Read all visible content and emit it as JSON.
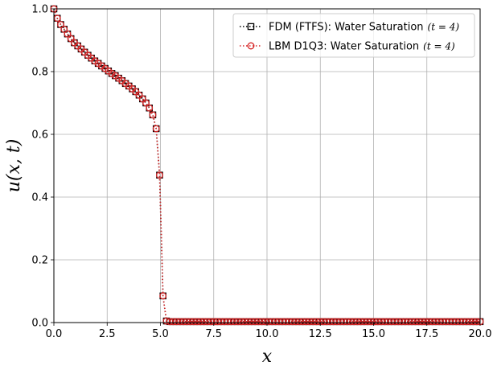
{
  "chart_data": {
    "type": "line",
    "title": "",
    "xlabel": "x",
    "ylabel": "u(x, t)",
    "xlim": [
      0,
      20
    ],
    "ylim": [
      0,
      1
    ],
    "xticks": [
      "0.0",
      "2.5",
      "5.0",
      "7.5",
      "10.0",
      "12.5",
      "15.0",
      "17.5",
      "20.0"
    ],
    "yticks": [
      "0.0",
      "0.2",
      "0.4",
      "0.6",
      "0.8",
      "1.0"
    ],
    "grid": true,
    "legend_position": "top-right",
    "series": [
      {
        "name": "FDM (FTFS): Water Saturation",
        "name_math": "(t = 4)",
        "color": "#000000",
        "linestyle": "dotted",
        "marker": "square"
      },
      {
        "name": "LBM D1Q3: Water Saturation",
        "name_math": "(t = 4)",
        "color": "#d62728",
        "linestyle": "dotted",
        "marker": "circle"
      }
    ],
    "x": [
      0.0,
      0.16,
      0.32,
      0.48,
      0.64,
      0.8,
      0.96,
      1.12,
      1.28,
      1.44,
      1.6,
      1.76,
      1.92,
      2.08,
      2.24,
      2.4,
      2.56,
      2.72,
      2.88,
      3.04,
      3.2,
      3.36,
      3.52,
      3.68,
      3.84,
      4.0,
      4.16,
      4.32,
      4.48,
      4.64,
      4.8,
      4.96,
      5.12,
      5.28,
      5.44,
      5.6,
      5.76,
      5.92,
      6.08,
      6.24,
      6.4,
      6.56,
      6.72,
      6.88,
      7.04,
      7.2,
      7.36,
      7.52,
      7.68,
      7.84,
      8.0,
      8.16,
      8.32,
      8.48,
      8.64,
      8.8,
      8.96,
      9.12,
      9.28,
      9.44,
      9.6,
      9.76,
      9.92,
      10.08,
      10.24,
      10.4,
      10.56,
      10.72,
      10.88,
      11.04,
      11.2,
      11.36,
      11.52,
      11.68,
      11.84,
      12.0,
      12.16,
      12.32,
      12.48,
      12.64,
      12.8,
      12.96,
      13.12,
      13.28,
      13.44,
      13.6,
      13.76,
      13.92,
      14.08,
      14.24,
      14.4,
      14.56,
      14.72,
      14.88,
      15.04,
      15.2,
      15.36,
      15.52,
      15.68,
      15.84,
      16.0,
      16.16,
      16.32,
      16.48,
      16.64,
      16.8,
      16.96,
      17.12,
      17.28,
      17.44,
      17.6,
      17.76,
      17.92,
      18.08,
      18.24,
      18.4,
      18.56,
      18.72,
      18.88,
      19.04,
      19.2,
      19.36,
      19.52,
      19.68,
      19.84,
      20.0
    ],
    "values": [
      1.0,
      0.97,
      0.95,
      0.935,
      0.92,
      0.905,
      0.892,
      0.882,
      0.872,
      0.862,
      0.852,
      0.843,
      0.834,
      0.826,
      0.818,
      0.81,
      0.802,
      0.794,
      0.787,
      0.779,
      0.771,
      0.762,
      0.754,
      0.745,
      0.736,
      0.725,
      0.713,
      0.7,
      0.684,
      0.662,
      0.618,
      0.47,
      0.085,
      0.005,
      0.003,
      0.003,
      0.003,
      0.003,
      0.003,
      0.003,
      0.003,
      0.003,
      0.003,
      0.003,
      0.003,
      0.003,
      0.003,
      0.003,
      0.003,
      0.003,
      0.003,
      0.003,
      0.003,
      0.003,
      0.003,
      0.003,
      0.003,
      0.003,
      0.003,
      0.003,
      0.003,
      0.003,
      0.003,
      0.003,
      0.003,
      0.003,
      0.003,
      0.003,
      0.003,
      0.003,
      0.003,
      0.003,
      0.003,
      0.003,
      0.003,
      0.003,
      0.003,
      0.003,
      0.003,
      0.003,
      0.003,
      0.003,
      0.003,
      0.003,
      0.003,
      0.003,
      0.003,
      0.003,
      0.003,
      0.003,
      0.003,
      0.003,
      0.003,
      0.003,
      0.003,
      0.003,
      0.003,
      0.003,
      0.003,
      0.003,
      0.003,
      0.003,
      0.003,
      0.003,
      0.003,
      0.003,
      0.003,
      0.003,
      0.003,
      0.003,
      0.003,
      0.003,
      0.003,
      0.003,
      0.003,
      0.003,
      0.003,
      0.003,
      0.003,
      0.003,
      0.003,
      0.003,
      0.003,
      0.003,
      0.003,
      0.003
    ]
  }
}
